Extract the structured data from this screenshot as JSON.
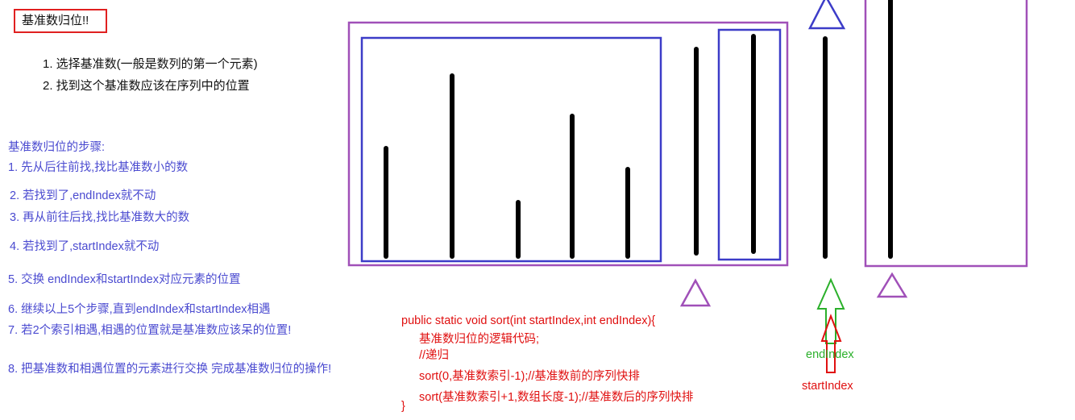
{
  "title": "基准数归位!!",
  "basic_list": [
    "1. 选择基准数(一般是数列的第一个元素)",
    "2. 找到这个基准数应该在序列中的位置"
  ],
  "steps_heading": "基准数归位的步骤:",
  "steps": [
    "1. 先从后往前找,找比基准数小的数",
    "2. 若找到了,endIndex就不动",
    "3. 再从前往后找,找比基准数大的数",
    "4. 若找到了,startIndex就不动",
    "5. 交换 endIndex和startIndex对应元素的位置",
    "6. 继续以上5个步骤,直到endIndex和startIndex相遇",
    "7. 若2个索引相遇,相遇的位置就是基准数应该呆的位置!",
    "8. 把基准数和相遇位置的元素进行交换 完成基准数归位的操作!"
  ],
  "code_lines": [
    "public static void sort(int startIndex,int endIndex){",
    "基准数归位的逻辑代码;",
    "//递归",
    "sort(0,基准数索引-1);//基准数前的序列快排",
    "sort(基准数索引+1,数组长度-1);//基准数后的序列快排",
    "}"
  ],
  "labels": {
    "end_index": "endIndex",
    "start_index": "startIndex"
  },
  "colors": {
    "purple": "#a050b8",
    "blue": "#3c3cc8",
    "red": "#e01010",
    "green": "#2bb02b",
    "bar": "#000000"
  }
}
